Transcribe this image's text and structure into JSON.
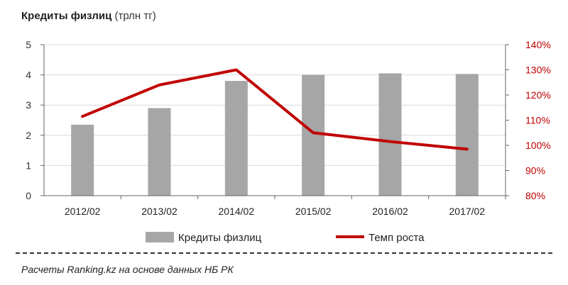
{
  "title": {
    "main": "Кредиты физлиц",
    "unit": "(трлн тг)"
  },
  "source_note": "Расчеты Ranking.kz на основе данных  НБ РК",
  "colors": {
    "bars": "#a6a6a6",
    "line": "#c00000",
    "axis_left_text": "#333333",
    "axis_right_text": "#c00000",
    "grid": "#d9d9d9"
  },
  "chart_data": {
    "type": "bar",
    "categories": [
      "2012/02",
      "2013/02",
      "2014/02",
      "2015/02",
      "2016/02",
      "2017/02"
    ],
    "series": [
      {
        "name": "Кредиты физлиц",
        "type": "bar",
        "axis": "left",
        "values": [
          2.35,
          2.9,
          3.8,
          4.0,
          4.05,
          4.03
        ]
      },
      {
        "name": "Темп роста",
        "type": "line",
        "axis": "right",
        "values": [
          111.5,
          124,
          130,
          105,
          101.5,
          98.5
        ]
      }
    ],
    "y_left": {
      "ticks": [
        "0",
        "1",
        "2",
        "3",
        "4",
        "5"
      ],
      "range": [
        0,
        5
      ]
    },
    "y_right": {
      "ticks": [
        "80%",
        "90%",
        "100%",
        "110%",
        "120%",
        "130%",
        "140%"
      ],
      "range": [
        80,
        140
      ]
    },
    "grid": true,
    "legend_position": "bottom"
  }
}
